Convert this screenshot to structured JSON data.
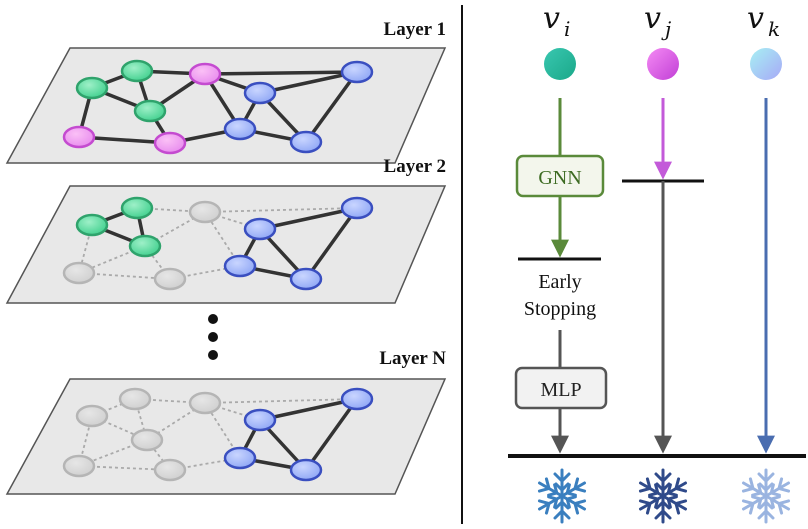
{
  "layers": [
    {
      "label": "Layer 1"
    },
    {
      "label": "Layer 2"
    },
    {
      "label": "Layer N"
    }
  ],
  "nodes": {
    "v_i": {
      "base": "v",
      "sub": "i"
    },
    "v_j": {
      "base": "v",
      "sub": "j"
    },
    "v_k": {
      "base": "v",
      "sub": "k"
    }
  },
  "boxes": {
    "gnn": "GNN",
    "mlp": "MLP"
  },
  "early_stopping": {
    "line1": "Early",
    "line2": "Stopping"
  },
  "colors": {
    "green_edge": "#5a8a3a",
    "purple_edge": "#c35ad9",
    "blue_edge": "#4a6db0",
    "gray_edge": "#555555",
    "plane_fill": "#e8e8e8",
    "teal_node": "#5fd3a8",
    "pink_node": "#e07ae8",
    "blue_node": "#8fa6f0",
    "gray_node": "#d5d5d5"
  }
}
